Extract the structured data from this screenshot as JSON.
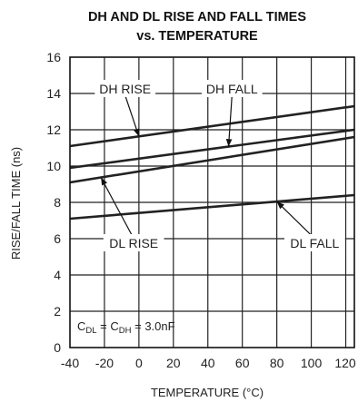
{
  "chart_data": {
    "type": "line",
    "title_line1": "DH AND DL RISE AND FALL TIMES",
    "title_line2": "vs. TEMPERATURE",
    "xlabel": "TEMPERATURE (°C)",
    "ylabel": "RISE/FALL TIME (ns)",
    "xlim": [
      -40,
      125
    ],
    "ylim": [
      0,
      16
    ],
    "xticks": [
      "-40",
      "-20",
      "0",
      "20",
      "40",
      "60",
      "80",
      "100",
      "120"
    ],
    "xtick_values": [
      -40,
      -20,
      0,
      20,
      40,
      60,
      80,
      100,
      120
    ],
    "yticks": [
      "0",
      "2",
      "4",
      "6",
      "8",
      "10",
      "12",
      "14",
      "16"
    ],
    "ytick_values": [
      0,
      2,
      4,
      6,
      8,
      10,
      12,
      14,
      16
    ],
    "grid": true,
    "series": [
      {
        "name": "DH RISE",
        "x": [
          -40,
          125
        ],
        "y": [
          11.1,
          13.3
        ]
      },
      {
        "name": "DH FALL",
        "x": [
          -40,
          125
        ],
        "y": [
          9.9,
          12.0
        ]
      },
      {
        "name": "DL RISE",
        "x": [
          -40,
          125
        ],
        "y": [
          9.1,
          11.6
        ]
      },
      {
        "name": "DL FALL",
        "x": [
          -40,
          125
        ],
        "y": [
          7.1,
          8.4
        ]
      }
    ],
    "annotation": {
      "c1": "C",
      "c1_sub": "DL",
      "eq1": " = C",
      "c2_sub": "DH",
      "eq2": " = 3.0nF"
    }
  }
}
